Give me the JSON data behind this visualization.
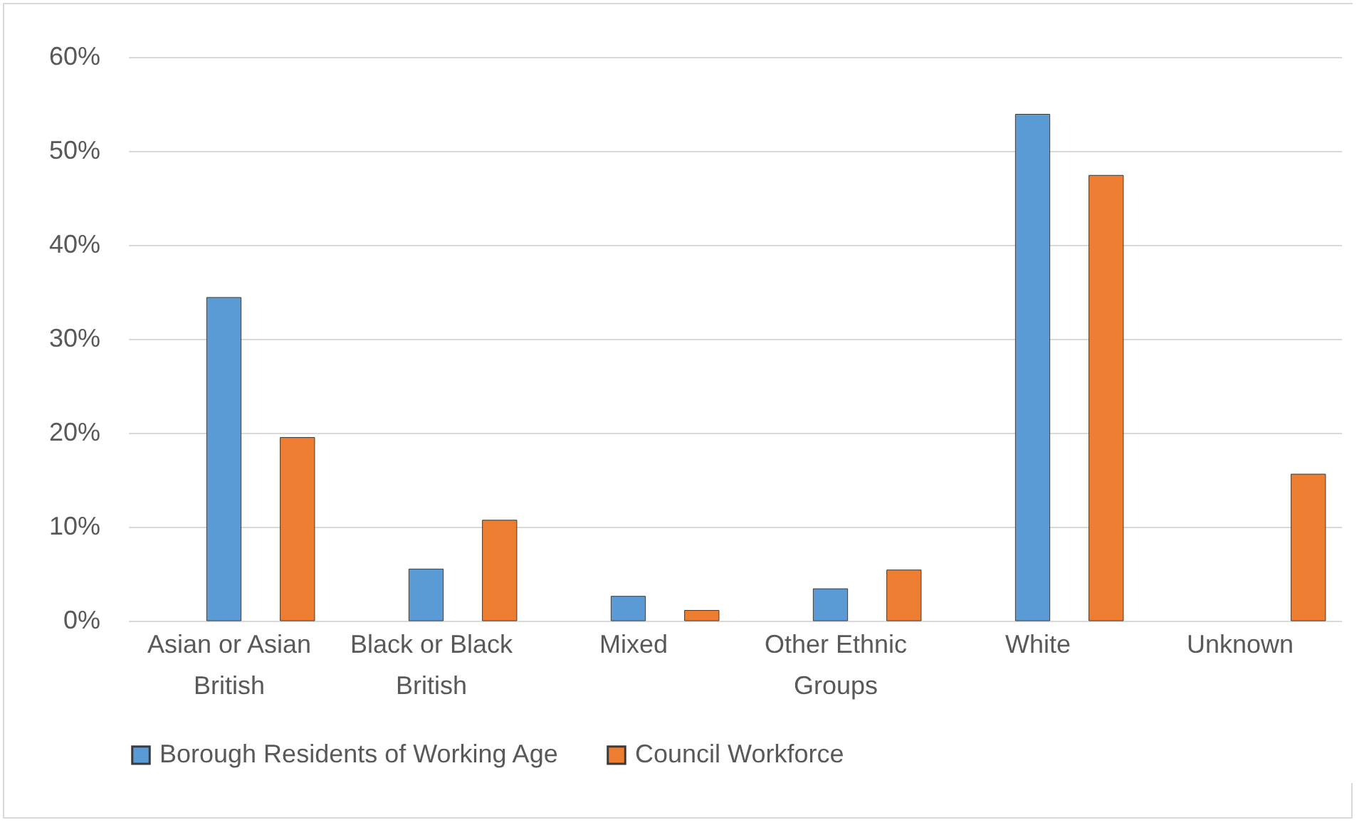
{
  "chart_data": {
    "type": "bar",
    "categories": [
      "Asian or Asian British",
      "Black or Black British",
      "Mixed",
      "Other Ethnic Groups",
      "White",
      "Unknown"
    ],
    "series": [
      {
        "name": "Borough Residents of Working Age",
        "color": "#5b9bd5",
        "values": [
          34.4,
          5.5,
          2.6,
          3.4,
          53.9,
          null
        ]
      },
      {
        "name": "Council Workforce",
        "color": "#ed7d31",
        "values": [
          19.5,
          10.7,
          1.1,
          5.4,
          47.4,
          15.6
        ]
      }
    ],
    "ylim": [
      0,
      60
    ],
    "yticks": [
      {
        "value": 0,
        "label": "0%"
      },
      {
        "value": 10,
        "label": "10%"
      },
      {
        "value": 20,
        "label": "20%"
      },
      {
        "value": 30,
        "label": "30%"
      },
      {
        "value": 40,
        "label": "40%"
      },
      {
        "value": 50,
        "label": "50%"
      },
      {
        "value": 60,
        "label": "60%"
      }
    ],
    "grid": "y",
    "legend": "bottom"
  }
}
